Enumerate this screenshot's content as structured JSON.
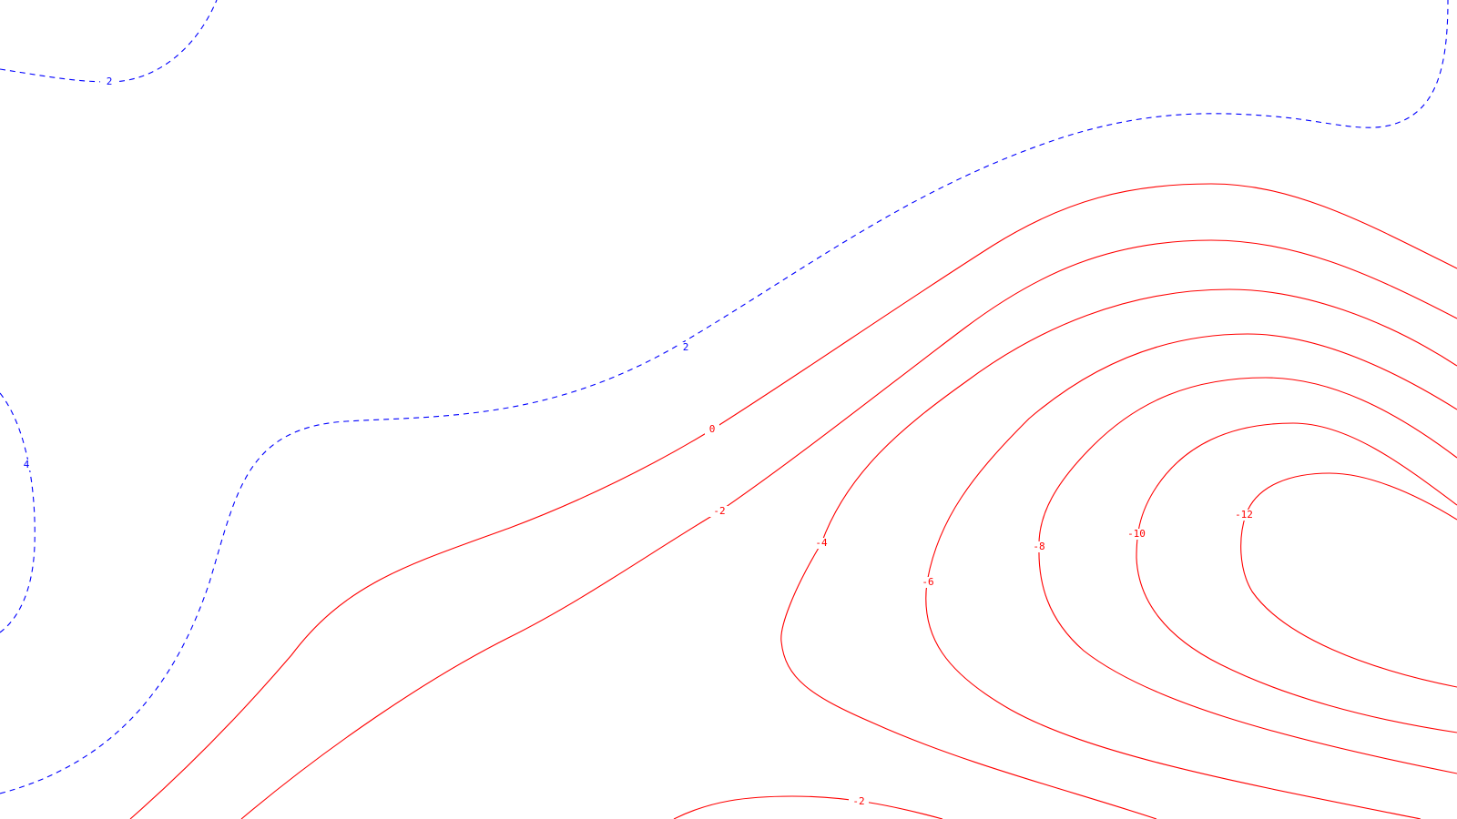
{
  "map": {
    "type": "contour",
    "colors": {
      "negative_dashed": "#0000ff",
      "positive_solid": "#ff0000",
      "background": "#ffffff"
    },
    "contours": [
      {
        "id": "c1",
        "label": "2",
        "color": "#0000ff",
        "dashed": true
      },
      {
        "id": "c2",
        "label": "2",
        "color": "#0000ff",
        "dashed": true
      },
      {
        "id": "c3",
        "label": "4",
        "color": "#0000ff",
        "dashed": true
      },
      {
        "id": "c4",
        "label": "0",
        "color": "#ff0000",
        "dashed": false
      },
      {
        "id": "c5",
        "label": "-2",
        "color": "#ff0000",
        "dashed": false
      },
      {
        "id": "c6",
        "label": "-4",
        "color": "#ff0000",
        "dashed": false
      },
      {
        "id": "c7",
        "label": "-6",
        "color": "#ff0000",
        "dashed": false
      },
      {
        "id": "c8",
        "label": "-8",
        "color": "#ff0000",
        "dashed": false
      },
      {
        "id": "c9",
        "label": "-10",
        "color": "#ff0000",
        "dashed": false
      },
      {
        "id": "c10",
        "label": "-12",
        "color": "#ff0000",
        "dashed": false
      },
      {
        "id": "c11",
        "label": "-2",
        "color": "#ff0000",
        "dashed": false
      }
    ]
  }
}
